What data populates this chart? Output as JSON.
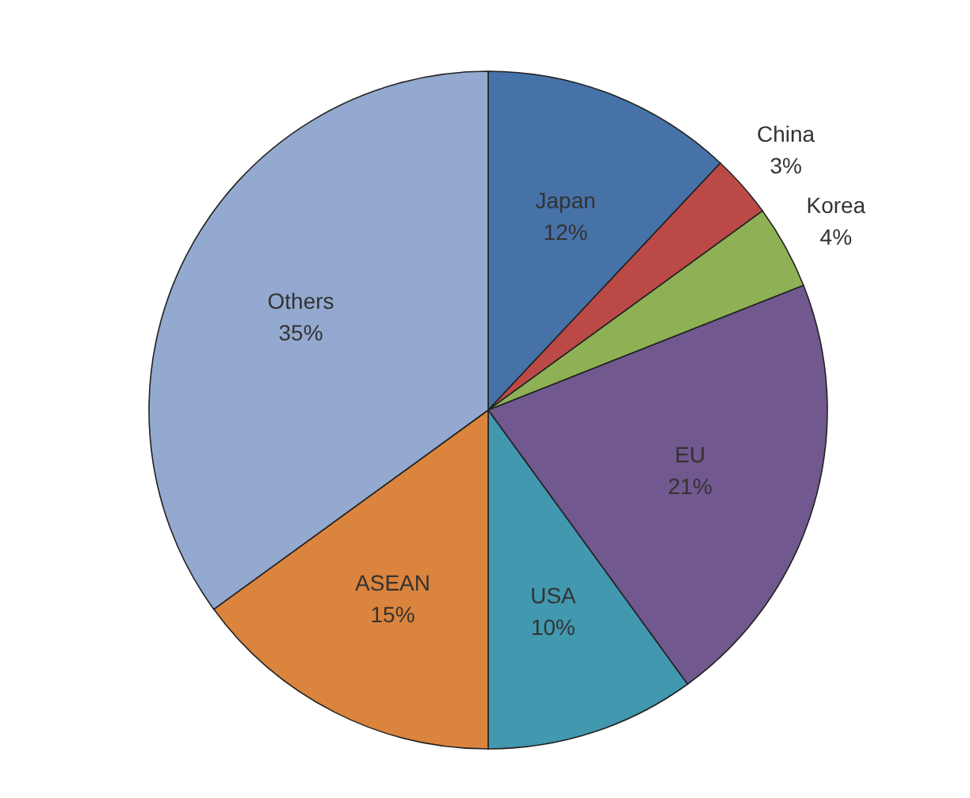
{
  "chart_data": {
    "type": "pie",
    "categories": [
      "Japan",
      "China",
      "Korea",
      "EU",
      "USA",
      "ASEAN",
      "Others"
    ],
    "values": [
      12,
      3,
      4,
      21,
      10,
      15,
      35
    ],
    "value_labels": [
      "12%",
      "3%",
      "4%",
      "21%",
      "10%",
      "15%",
      "35%"
    ],
    "colors": [
      "#4672a8",
      "#bb4a47",
      "#8eb155",
      "#71588f",
      "#4198af",
      "#db843d",
      "#93a9cf"
    ]
  }
}
